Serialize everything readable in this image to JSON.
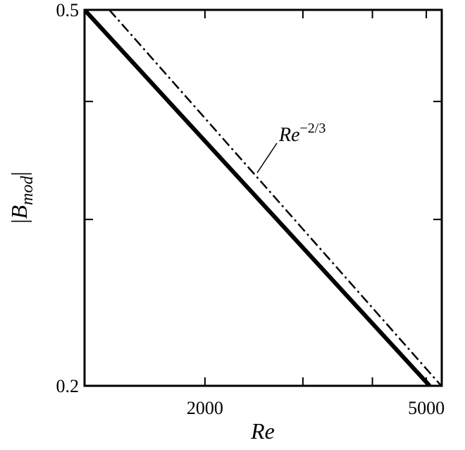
{
  "chart_data": {
    "type": "line",
    "xlabel": "Re",
    "ylabel": {
      "left": "|",
      "base": "B",
      "sub": "mod",
      "right": "|"
    },
    "x_log": true,
    "y_log": true,
    "xlim": [
      1215,
      5330
    ],
    "ylim": [
      0.2,
      0.5
    ],
    "xticks": [
      2000,
      5000
    ],
    "xminor_ticks": [
      3000,
      4000
    ],
    "yticks": [
      0.2,
      0.5
    ],
    "yminor_ticks": [
      0.3,
      0.4
    ],
    "series": [
      {
        "color": "#000000",
        "style": "solid",
        "x": [
          1215,
          5070
        ],
        "values": [
          0.5,
          0.2
        ]
      },
      {
        "color": "#000000",
        "style": "dashdot",
        "x": [
          1346,
          5320
        ],
        "values": [
          0.5,
          0.2
        ]
      }
    ],
    "annotation": {
      "base": "Re",
      "exponent": "−2/3"
    }
  }
}
